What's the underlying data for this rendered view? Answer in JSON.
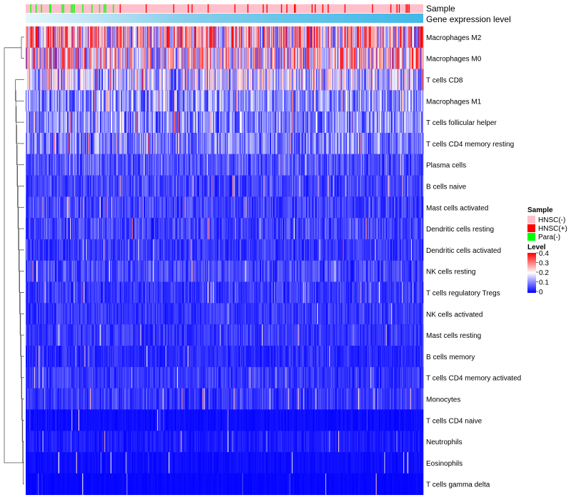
{
  "chart_data": {
    "type": "heatmap",
    "title": "",
    "annotation_tracks": [
      {
        "name": "Sample",
        "colors": {
          "HNSC(-)": "#FFC0CB",
          "HNSC(+)": "#FF0000",
          "Para(-)": "#00FF00"
        }
      },
      {
        "name": "Gene expression level",
        "gradient": [
          "#87CEEB",
          "#3FB8E8"
        ]
      }
    ],
    "rows": [
      {
        "label": "Macrophages M2",
        "mean": 0.22
      },
      {
        "label": "Macrophages M0",
        "mean": 0.19
      },
      {
        "label": "T cells CD8",
        "mean": 0.14
      },
      {
        "label": "Macrophages M1",
        "mean": 0.1
      },
      {
        "label": "T cells follicular helper",
        "mean": 0.1
      },
      {
        "label": "T cells CD4 memory resting",
        "mean": 0.09
      },
      {
        "label": "Plasma cells",
        "mean": 0.06
      },
      {
        "label": "B cells naive",
        "mean": 0.05
      },
      {
        "label": "Mast cells activated",
        "mean": 0.05
      },
      {
        "label": "Dendritic cells resting",
        "mean": 0.05
      },
      {
        "label": "Dendritic cells activated",
        "mean": 0.04
      },
      {
        "label": "NK cells resting",
        "mean": 0.05
      },
      {
        "label": "T cells regulatory  Tregs",
        "mean": 0.04
      },
      {
        "label": "NK cells activated",
        "mean": 0.04
      },
      {
        "label": "Mast cells resting",
        "mean": 0.04
      },
      {
        "label": "B cells memory",
        "mean": 0.03
      },
      {
        "label": "T cells CD4 memory activated",
        "mean": 0.04
      },
      {
        "label": "Monocytes",
        "mean": 0.04
      },
      {
        "label": "T cells CD4 naive",
        "mean": 0.01
      },
      {
        "label": "Neutrophils",
        "mean": 0.02
      },
      {
        "label": "Eosinophils",
        "mean": 0.01
      },
      {
        "label": "T cells gamma delta",
        "mean": 0.005
      }
    ],
    "color_scale": {
      "min": 0,
      "max": 0.4,
      "low": "#0000FF",
      "mid": "#FFFFFF",
      "high": "#FF0000"
    },
    "legend": {
      "sample_title": "Sample",
      "sample_items": [
        {
          "label": "HNSC(-)",
          "color": "#FFC0CB"
        },
        {
          "label": "HNSC(+)",
          "color": "#FF0000"
        },
        {
          "label": "Para(-)",
          "color": "#00FF00"
        }
      ],
      "level_title": "Level",
      "level_ticks": [
        "0.4",
        "0.3",
        "0.2",
        "0.1",
        "0"
      ],
      "position": "right"
    },
    "dendrogram": "rows"
  }
}
